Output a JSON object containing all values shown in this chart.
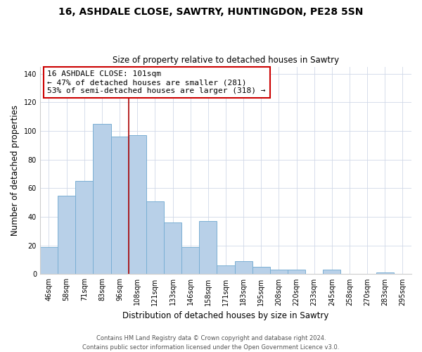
{
  "title": "16, ASHDALE CLOSE, SAWTRY, HUNTINGDON, PE28 5SN",
  "subtitle": "Size of property relative to detached houses in Sawtry",
  "xlabel": "Distribution of detached houses by size in Sawtry",
  "ylabel": "Number of detached properties",
  "categories": [
    "46sqm",
    "58sqm",
    "71sqm",
    "83sqm",
    "96sqm",
    "108sqm",
    "121sqm",
    "133sqm",
    "146sqm",
    "158sqm",
    "171sqm",
    "183sqm",
    "195sqm",
    "208sqm",
    "220sqm",
    "233sqm",
    "245sqm",
    "258sqm",
    "270sqm",
    "283sqm",
    "295sqm"
  ],
  "values": [
    19,
    55,
    65,
    105,
    96,
    97,
    51,
    36,
    19,
    37,
    6,
    9,
    5,
    3,
    3,
    0,
    3,
    0,
    0,
    1,
    0
  ],
  "bar_color": "#b8d0e8",
  "bar_edge_color": "#7aafd4",
  "vline_index": 4,
  "vline_color": "#aa0000",
  "ylim": [
    0,
    145
  ],
  "yticks": [
    0,
    20,
    40,
    60,
    80,
    100,
    120,
    140
  ],
  "marker_label": "16 ASHDALE CLOSE: 101sqm",
  "annotation_smaller": "← 47% of detached houses are smaller (281)",
  "annotation_larger": "53% of semi-detached houses are larger (318) →",
  "footer1": "Contains HM Land Registry data © Crown copyright and database right 2024.",
  "footer2": "Contains public sector information licensed under the Open Government Licence v3.0.",
  "title_fontsize": 10,
  "subtitle_fontsize": 8.5,
  "axis_label_fontsize": 8.5,
  "tick_fontsize": 7,
  "annot_fontsize": 8,
  "footer_fontsize": 6
}
